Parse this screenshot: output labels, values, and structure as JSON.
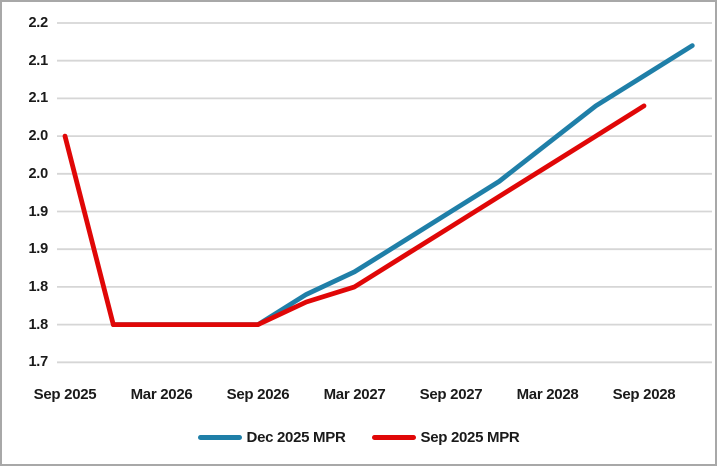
{
  "chart": {
    "background": "#FFFFFF",
    "border_color": "#A8A8A8",
    "gridline_color": "#D6D6D6",
    "text_color": "#1A1A1A"
  },
  "chart_data": {
    "type": "line",
    "title": "",
    "categories": [
      "Sep 2025",
      "Dec 2025",
      "Mar 2026",
      "Jun 2026",
      "Sep 2026",
      "Dec 2026",
      "Mar 2027",
      "Jun 2027",
      "Sep 2027",
      "Dec 2027",
      "Mar 2028",
      "Jun 2028",
      "Sep 2028",
      "Dec 2028"
    ],
    "series": [
      {
        "name": "Dec 2025 MPR",
        "color": "#1F7FA8",
        "values": [
          null,
          1.75,
          1.75,
          1.75,
          1.75,
          1.79,
          1.82,
          1.86,
          1.9,
          1.94,
          1.99,
          2.04,
          2.08,
          2.12
        ]
      },
      {
        "name": "Sep 2025 MPR",
        "color": "#E00707",
        "values": [
          2.0,
          1.75,
          1.75,
          1.75,
          1.75,
          1.78,
          1.8,
          1.84,
          1.88,
          1.92,
          1.96,
          2.0,
          2.04,
          null
        ]
      }
    ],
    "y_axis": {
      "min": 1.7,
      "max": 2.15,
      "step": 0.05,
      "tick_labels_top_to_bottom": [
        "2.2",
        "2.1",
        "2.1",
        "2.0",
        "2.0",
        "1.9",
        "1.9",
        "1.8",
        "1.8",
        "1.7"
      ]
    },
    "x_axis": {
      "tick_labels": [
        "Sep 2025",
        "Mar 2026",
        "Sep 2026",
        "Mar 2027",
        "Sep 2027",
        "Mar 2028",
        "Sep 2028"
      ],
      "tick_category_indices": [
        0,
        2,
        4,
        6,
        8,
        10,
        12
      ]
    },
    "legend": {
      "position": "bottom",
      "items": [
        "Dec 2025 MPR",
        "Sep 2025 MPR"
      ]
    },
    "grid": true
  }
}
